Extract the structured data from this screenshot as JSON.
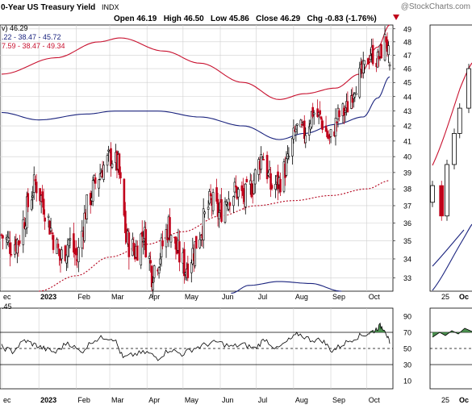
{
  "watermark": "@StockCharts.com",
  "header": {
    "title": "0-Year US Treasury Yield",
    "exchange": "INDX",
    "ohlc": "Open 46.19   High 46.50   Low 45.86   Close 46.29   Chg -0.83 (-1.76%)"
  },
  "legend": {
    "price_line": "v) 46.29",
    "upper_band_line": ".22 - 38.47 - 45.72",
    "lower_band_line": "7.59 - 38.47 - 49.34"
  },
  "indicator": {
    "value_label": ".45"
  },
  "colors": {
    "up_candle": "#000000",
    "down_candle": "#c0001a",
    "blue_band": "#1a237e",
    "red_band": "#c8102e",
    "ma_dotted": "#b3001b",
    "grid": "#cfcfcf",
    "rsi_fill": "#2e7d32"
  },
  "chart_data": [
    {
      "type": "candlestick",
      "title": "0-Year US Treasury Yield INDX",
      "x_ticks": [
        "ec",
        "2023",
        "Feb",
        "Mar",
        "Apr",
        "May",
        "Jun",
        "Jul",
        "Aug",
        "Sep",
        "Oct"
      ],
      "y_ticks": [
        33,
        34,
        35,
        36,
        37,
        38,
        39,
        40,
        41,
        42,
        43,
        44,
        45,
        46,
        47,
        48,
        49
      ],
      "ylim": [
        32.3,
        49.3
      ],
      "y_scale": "log",
      "grid": true,
      "x_domain": [
        "2022-12-01",
        "2023-10-20"
      ],
      "ohlc_last": {
        "open": 46.19,
        "high": 46.5,
        "low": 45.86,
        "close": 46.29,
        "change": -0.83,
        "change_pct": -1.76
      },
      "closes": [
        {
          "date": "2022-12-01",
          "close": 35.3
        },
        {
          "date": "2022-12-08",
          "close": 34.8
        },
        {
          "date": "2022-12-15",
          "close": 35.0
        },
        {
          "date": "2022-12-22",
          "close": 36.8
        },
        {
          "date": "2022-12-29",
          "close": 38.4
        },
        {
          "date": "2023-01-05",
          "close": 37.1
        },
        {
          "date": "2023-01-12",
          "close": 35.4
        },
        {
          "date": "2023-01-19",
          "close": 34.0
        },
        {
          "date": "2023-01-26",
          "close": 35.0
        },
        {
          "date": "2023-02-02",
          "close": 34.0
        },
        {
          "date": "2023-02-09",
          "close": 36.7
        },
        {
          "date": "2023-02-16",
          "close": 38.2
        },
        {
          "date": "2023-02-23",
          "close": 39.3
        },
        {
          "date": "2023-03-02",
          "close": 40.0
        },
        {
          "date": "2023-03-08",
          "close": 39.4
        },
        {
          "date": "2023-03-15",
          "close": 35.0
        },
        {
          "date": "2023-03-22",
          "close": 34.4
        },
        {
          "date": "2023-03-29",
          "close": 35.5
        },
        {
          "date": "2023-04-05",
          "close": 33.3
        },
        {
          "date": "2023-04-12",
          "close": 34.3
        },
        {
          "date": "2023-04-19",
          "close": 35.9
        },
        {
          "date": "2023-04-26",
          "close": 34.4
        },
        {
          "date": "2023-05-03",
          "close": 33.5
        },
        {
          "date": "2023-05-10",
          "close": 34.5
        },
        {
          "date": "2023-05-17",
          "close": 35.9
        },
        {
          "date": "2023-05-24",
          "close": 37.3
        },
        {
          "date": "2023-05-31",
          "close": 36.5
        },
        {
          "date": "2023-06-07",
          "close": 37.6
        },
        {
          "date": "2023-06-14",
          "close": 37.9
        },
        {
          "date": "2023-06-21",
          "close": 37.4
        },
        {
          "date": "2023-06-28",
          "close": 38.3
        },
        {
          "date": "2023-07-06",
          "close": 40.3
        },
        {
          "date": "2023-07-13",
          "close": 38.1
        },
        {
          "date": "2023-07-20",
          "close": 38.4
        },
        {
          "date": "2023-07-27",
          "close": 39.6
        },
        {
          "date": "2023-08-03",
          "close": 41.8
        },
        {
          "date": "2023-08-10",
          "close": 41.5
        },
        {
          "date": "2023-08-17",
          "close": 43.0
        },
        {
          "date": "2023-08-24",
          "close": 42.4
        },
        {
          "date": "2023-08-31",
          "close": 41.0
        },
        {
          "date": "2023-09-07",
          "close": 42.6
        },
        {
          "date": "2023-09-14",
          "close": 43.1
        },
        {
          "date": "2023-09-21",
          "close": 44.9
        },
        {
          "date": "2023-09-28",
          "close": 45.8
        },
        {
          "date": "2023-10-04",
          "close": 47.2
        },
        {
          "date": "2023-10-10",
          "close": 46.6
        },
        {
          "date": "2023-10-17",
          "close": 48.3
        },
        {
          "date": "2023-10-20",
          "close": 46.29
        }
      ],
      "upper_band": [
        {
          "date": "2022-12-01",
          "value": 45.6
        },
        {
          "date": "2023-01-15",
          "value": 46.8
        },
        {
          "date": "2023-02-20",
          "value": 48.0
        },
        {
          "date": "2023-03-10",
          "value": 48.3
        },
        {
          "date": "2023-04-15",
          "value": 47.3
        },
        {
          "date": "2023-05-15",
          "value": 46.4
        },
        {
          "date": "2023-06-20",
          "value": 45.0
        },
        {
          "date": "2023-07-20",
          "value": 43.8
        },
        {
          "date": "2023-08-10",
          "value": 44.2
        },
        {
          "date": "2023-09-05",
          "value": 44.6
        },
        {
          "date": "2023-09-25",
          "value": 45.6
        },
        {
          "date": "2023-10-10",
          "value": 47.6
        },
        {
          "date": "2023-10-20",
          "value": 49.3
        }
      ],
      "middle_band": [
        {
          "date": "2022-12-01",
          "value": 42.9
        },
        {
          "date": "2023-01-01",
          "value": 42.4
        },
        {
          "date": "2023-02-10",
          "value": 42.8
        },
        {
          "date": "2023-03-05",
          "value": 43.0
        },
        {
          "date": "2023-04-10",
          "value": 43.0
        },
        {
          "date": "2023-05-15",
          "value": 42.6
        },
        {
          "date": "2023-06-20",
          "value": 42.0
        },
        {
          "date": "2023-07-20",
          "value": 41.1
        },
        {
          "date": "2023-08-10",
          "value": 41.5
        },
        {
          "date": "2023-09-05",
          "value": 42.1
        },
        {
          "date": "2023-09-28",
          "value": 42.6
        },
        {
          "date": "2023-10-10",
          "value": 43.9
        },
        {
          "date": "2023-10-20",
          "value": 45.4
        }
      ],
      "lower_band": [
        {
          "date": "2023-06-10",
          "value": 32.2
        },
        {
          "date": "2023-06-25",
          "value": 32.6
        },
        {
          "date": "2023-07-20",
          "value": 32.8
        },
        {
          "date": "2023-08-15",
          "value": 32.7
        },
        {
          "date": "2023-09-10",
          "value": 32.3
        }
      ],
      "moving_average": [
        {
          "date": "2023-01-01",
          "value": 32.3
        },
        {
          "date": "2023-02-01",
          "value": 33.1
        },
        {
          "date": "2023-03-01",
          "value": 34.1
        },
        {
          "date": "2023-04-01",
          "value": 34.8
        },
        {
          "date": "2023-05-01",
          "value": 35.5
        },
        {
          "date": "2023-06-01",
          "value": 36.4
        },
        {
          "date": "2023-07-01",
          "value": 37.0
        },
        {
          "date": "2023-08-01",
          "value": 37.3
        },
        {
          "date": "2023-09-01",
          "value": 37.6
        },
        {
          "date": "2023-10-01",
          "value": 38.0
        },
        {
          "date": "2023-10-20",
          "value": 38.5
        }
      ]
    },
    {
      "type": "line",
      "title": "",
      "x_ticks": [
        "ec",
        "2023",
        "Feb",
        "Mar",
        "Apr",
        "May",
        "Jun",
        "Jul",
        "Aug",
        "Sep",
        "Oct"
      ],
      "y_ticks": [
        10,
        30,
        50,
        70,
        90
      ],
      "ylim": [
        0,
        100
      ],
      "reference_lines": [
        30,
        50,
        70
      ],
      "x_domain": [
        "2022-12-01",
        "2023-10-20"
      ],
      "series": [
        {
          "name": "",
          "values": [
            {
              "date": "2022-12-01",
              "value": 52
            },
            {
              "date": "2022-12-10",
              "value": 46
            },
            {
              "date": "2022-12-20",
              "value": 60
            },
            {
              "date": "2022-12-28",
              "value": 55
            },
            {
              "date": "2023-01-05",
              "value": 50
            },
            {
              "date": "2023-01-15",
              "value": 45
            },
            {
              "date": "2023-01-25",
              "value": 58
            },
            {
              "date": "2023-02-05",
              "value": 45
            },
            {
              "date": "2023-02-15",
              "value": 60
            },
            {
              "date": "2023-02-25",
              "value": 64
            },
            {
              "date": "2023-03-05",
              "value": 62
            },
            {
              "date": "2023-03-12",
              "value": 38
            },
            {
              "date": "2023-03-22",
              "value": 43
            },
            {
              "date": "2023-04-01",
              "value": 45
            },
            {
              "date": "2023-04-10",
              "value": 38
            },
            {
              "date": "2023-04-20",
              "value": 49
            },
            {
              "date": "2023-04-30",
              "value": 43
            },
            {
              "date": "2023-05-10",
              "value": 50
            },
            {
              "date": "2023-05-20",
              "value": 55
            },
            {
              "date": "2023-05-30",
              "value": 58
            },
            {
              "date": "2023-06-10",
              "value": 52
            },
            {
              "date": "2023-06-20",
              "value": 55
            },
            {
              "date": "2023-06-30",
              "value": 50
            },
            {
              "date": "2023-07-08",
              "value": 62
            },
            {
              "date": "2023-07-18",
              "value": 49
            },
            {
              "date": "2023-07-28",
              "value": 60
            },
            {
              "date": "2023-08-05",
              "value": 68
            },
            {
              "date": "2023-08-15",
              "value": 61
            },
            {
              "date": "2023-08-25",
              "value": 60
            },
            {
              "date": "2023-09-02",
              "value": 47
            },
            {
              "date": "2023-09-12",
              "value": 56
            },
            {
              "date": "2023-09-22",
              "value": 64
            },
            {
              "date": "2023-10-01",
              "value": 68
            },
            {
              "date": "2023-10-07",
              "value": 72
            },
            {
              "date": "2023-10-12",
              "value": 78
            },
            {
              "date": "2023-10-16",
              "value": 74
            },
            {
              "date": "2023-10-20",
              "value": 56
            }
          ]
        }
      ]
    },
    {
      "type": "candlestick",
      "title": "",
      "x_ticks": [
        "25",
        "Oc"
      ],
      "note": "second, partially visible weekly-range chart cropped at right edge",
      "closes": [
        {
          "date": "2023-09-20",
          "close": 38.2
        },
        {
          "date": "2023-09-25",
          "close": 36.4
        },
        {
          "date": "2023-09-28",
          "close": 39.5
        },
        {
          "date": "2023-10-02",
          "close": 41.5
        },
        {
          "date": "2023-10-05",
          "close": 43.2
        },
        {
          "date": "2023-10-10",
          "close": 46.0
        }
      ]
    }
  ]
}
